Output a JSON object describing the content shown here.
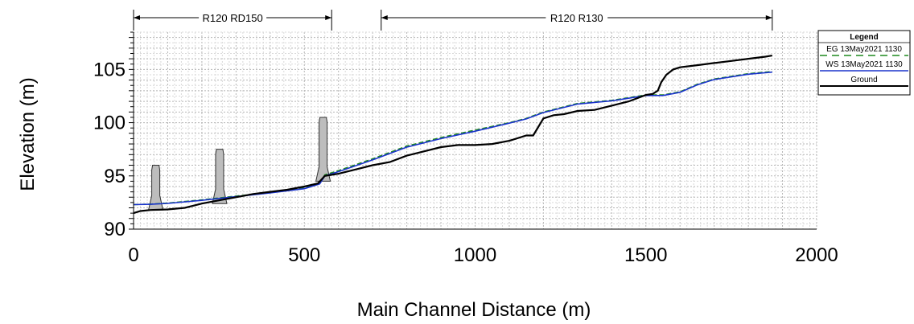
{
  "chart_data": {
    "type": "line",
    "xlabel": "Main Channel Distance (m)",
    "ylabel": "Elevation (m)",
    "xlim": [
      0,
      2000
    ],
    "ylim": [
      90,
      108.5
    ],
    "x_ticks": [
      "0",
      "500",
      "1000",
      "1500",
      "2000"
    ],
    "y_ticks": [
      "90",
      "95",
      "100",
      "105"
    ],
    "grid": true,
    "reaches": [
      {
        "label": "R120 RD150",
        "x_start": 0,
        "x_end": 580
      },
      {
        "label": "R120 R130",
        "x_start": 725,
        "x_end": 1870
      }
    ],
    "legend": {
      "title": "Legend",
      "position": "right",
      "entries": [
        {
          "label": "EG  13May2021 1130",
          "color": "#1f8a1f",
          "style": "dashed"
        },
        {
          "label": "WS  13May2021 1130",
          "color": "#1a33cc",
          "style": "solid"
        },
        {
          "label": "Ground",
          "color": "#000000",
          "style": "solid"
        }
      ]
    },
    "structures": [
      {
        "x": 65,
        "top": 96.0,
        "bottom": 91.8
      },
      {
        "x": 252,
        "top": 97.5,
        "bottom": 92.4
      },
      {
        "x": 555,
        "top": 100.5,
        "bottom": 94.5
      }
    ],
    "series": [
      {
        "name": "EG  13May2021 1130",
        "color": "#1f8a1f",
        "x": [
          0,
          50,
          100,
          200,
          300,
          400,
          500,
          545,
          560,
          600,
          700,
          800,
          900,
          1000,
          1100,
          1150,
          1200,
          1300,
          1400,
          1500,
          1550,
          1600,
          1650,
          1700,
          1800,
          1870
        ],
        "y": [
          92.3,
          92.35,
          92.45,
          92.75,
          93.1,
          93.45,
          93.85,
          94.3,
          95.1,
          95.5,
          96.6,
          97.8,
          98.6,
          99.3,
          100.0,
          100.4,
          101.0,
          101.8,
          102.1,
          102.6,
          102.6,
          102.9,
          103.6,
          104.1,
          104.6,
          104.8
        ]
      },
      {
        "name": "WS  13May2021 1130",
        "color": "#1a33cc",
        "x": [
          0,
          50,
          100,
          200,
          300,
          400,
          500,
          545,
          560,
          600,
          700,
          800,
          900,
          1000,
          1100,
          1150,
          1200,
          1300,
          1400,
          1500,
          1550,
          1600,
          1650,
          1700,
          1800,
          1870
        ],
        "y": [
          92.3,
          92.33,
          92.42,
          92.7,
          93.05,
          93.4,
          93.8,
          94.25,
          95.0,
          95.4,
          96.5,
          97.7,
          98.5,
          99.2,
          99.95,
          100.35,
          100.95,
          101.75,
          102.05,
          102.55,
          102.55,
          102.85,
          103.55,
          104.05,
          104.55,
          104.75
        ]
      },
      {
        "name": "Ground",
        "color": "#000000",
        "x": [
          0,
          20,
          50,
          100,
          150,
          200,
          250,
          300,
          350,
          400,
          450,
          500,
          540,
          560,
          600,
          650,
          700,
          750,
          800,
          850,
          900,
          950,
          1000,
          1050,
          1100,
          1150,
          1170,
          1200,
          1230,
          1260,
          1300,
          1350,
          1400,
          1450,
          1500,
          1520,
          1535,
          1545,
          1560,
          1580,
          1600,
          1650,
          1700,
          1750,
          1800,
          1850,
          1870
        ],
        "y": [
          91.5,
          91.7,
          91.8,
          91.85,
          92.0,
          92.4,
          92.7,
          93.0,
          93.3,
          93.5,
          93.7,
          94.0,
          94.3,
          95.0,
          95.2,
          95.6,
          96.0,
          96.3,
          96.9,
          97.3,
          97.7,
          97.9,
          97.9,
          98.0,
          98.3,
          98.8,
          98.8,
          100.4,
          100.7,
          100.8,
          101.1,
          101.2,
          101.6,
          102.0,
          102.6,
          102.7,
          103.0,
          103.8,
          104.5,
          105.0,
          105.2,
          105.4,
          105.6,
          105.8,
          106.0,
          106.2,
          106.3
        ]
      }
    ]
  }
}
